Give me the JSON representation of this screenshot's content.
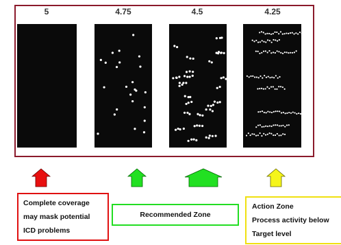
{
  "panels": [
    {
      "label": "5"
    },
    {
      "label": "4.75"
    },
    {
      "label": "4.5"
    },
    {
      "label": "4.25"
    }
  ],
  "notes": [
    {
      "lines": [
        "Complete coverage",
        "may mask potential",
        "ICD problems"
      ]
    },
    {
      "lines": [
        "Recommended Zone"
      ]
    },
    {
      "lines": [
        "Action Zone",
        "Process activity below",
        "Target level"
      ]
    }
  ]
}
